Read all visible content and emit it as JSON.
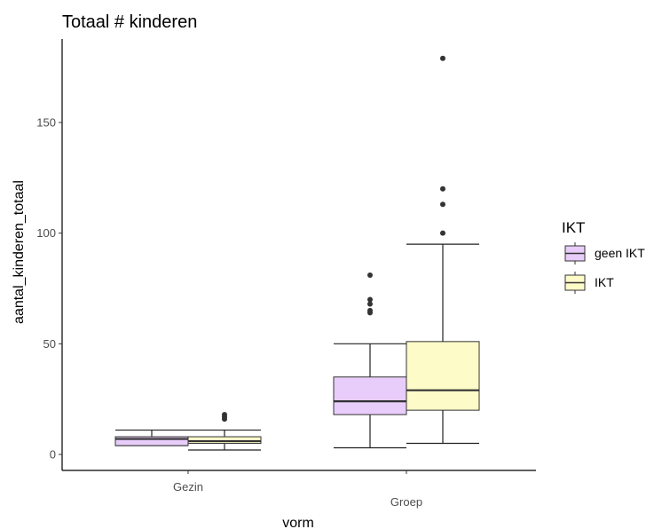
{
  "chart_data": {
    "type": "boxplot",
    "title": "Totaal # kinderen",
    "xlabel": "vorm",
    "ylabel": "aantal_kinderen_totaal",
    "categories": [
      "Gezin",
      "Groep"
    ],
    "ylim": [
      -5,
      187
    ],
    "yticks": [
      0,
      50,
      100,
      150
    ],
    "grid": false,
    "legend": {
      "title": "IKT",
      "position": "right",
      "entries": [
        "geen IKT",
        "IKT"
      ]
    },
    "series": [
      {
        "name": "geen IKT",
        "color": "#e8ccfa",
        "boxes": [
          {
            "category": "Gezin",
            "whisker_low": 4,
            "q1": 4,
            "median": 7,
            "q3": 8,
            "whisker_high": 11,
            "outliers": []
          },
          {
            "category": "Groep",
            "whisker_low": 3,
            "q1": 18,
            "median": 24,
            "q3": 35,
            "whisker_high": 50,
            "outliers": [
              64,
              65,
              68,
              70,
              81
            ]
          }
        ]
      },
      {
        "name": "IKT",
        "color": "#fdfbc8",
        "boxes": [
          {
            "category": "Gezin",
            "whisker_low": 2,
            "q1": 5,
            "median": 6,
            "q3": 8,
            "whisker_high": 11,
            "outliers": [
              16,
              17,
              18
            ]
          },
          {
            "category": "Groep",
            "whisker_low": 5,
            "q1": 20,
            "median": 29,
            "q3": 51,
            "whisker_high": 95,
            "outliers": [
              100,
              113,
              120,
              179
            ]
          }
        ]
      }
    ]
  }
}
